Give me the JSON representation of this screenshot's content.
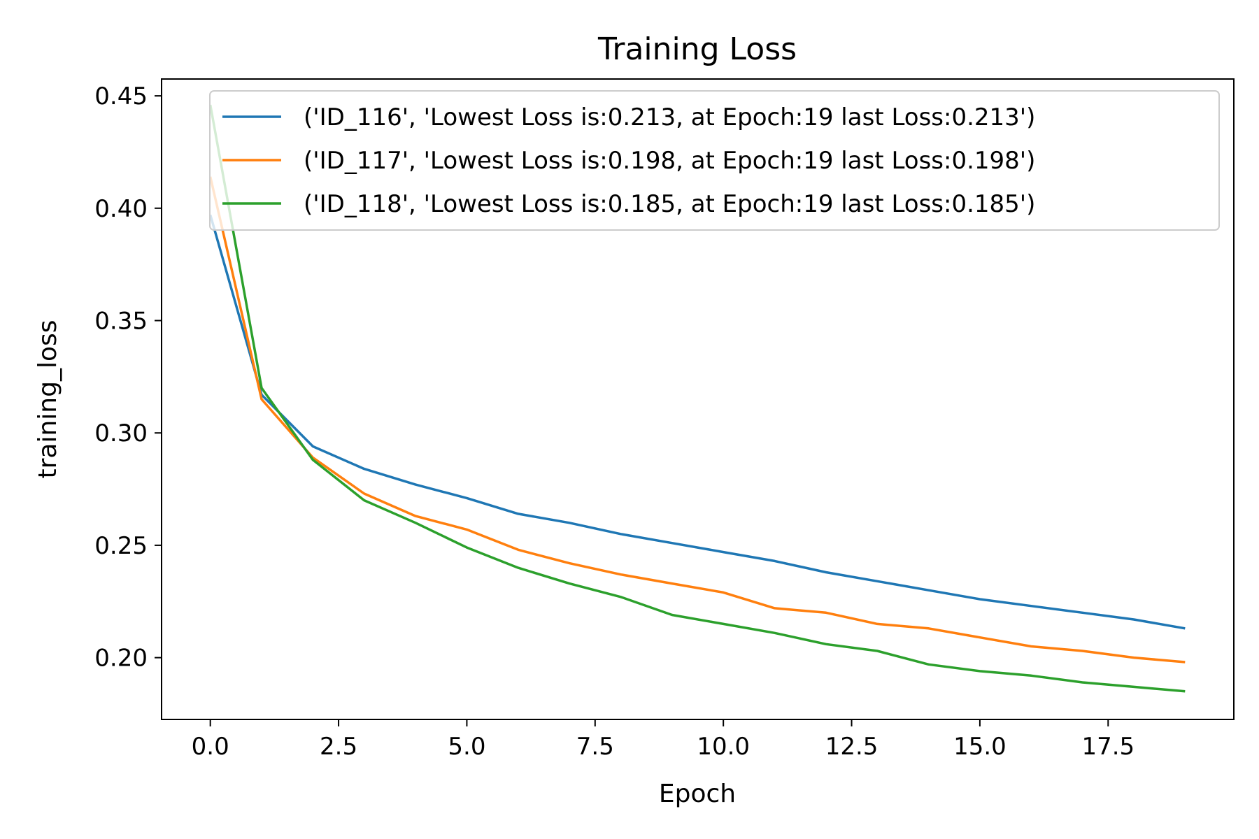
{
  "chart_data": {
    "type": "line",
    "title": "Training Loss",
    "xlabel": "Epoch",
    "ylabel": "training_loss",
    "xlim": [
      -0.95,
      19.95
    ],
    "ylim": [
      0.1725,
      0.4575
    ],
    "xticks": [
      0,
      2.5,
      5,
      7.5,
      10,
      12.5,
      15,
      17.5
    ],
    "xtick_labels": [
      "0.0",
      "2.5",
      "5.0",
      "7.5",
      "10.0",
      "12.5",
      "15.0",
      "17.5"
    ],
    "yticks": [
      0.2,
      0.25,
      0.3,
      0.35,
      0.4,
      0.45
    ],
    "ytick_labels": [
      "0.20",
      "0.25",
      "0.30",
      "0.35",
      "0.40",
      "0.45"
    ],
    "grid": false,
    "legend_position": "top-right",
    "x": [
      0,
      1,
      2,
      3,
      4,
      5,
      6,
      7,
      8,
      9,
      10,
      11,
      12,
      13,
      14,
      15,
      16,
      17,
      18,
      19
    ],
    "series": [
      {
        "name": "('ID_116', 'Lowest Loss is:0.213, at Epoch:19 last Loss:0.213')",
        "color": "#1f77b4",
        "values": [
          0.397,
          0.317,
          0.294,
          0.284,
          0.277,
          0.271,
          0.264,
          0.26,
          0.255,
          0.251,
          0.247,
          0.243,
          0.238,
          0.234,
          0.23,
          0.226,
          0.223,
          0.22,
          0.217,
          0.213
        ]
      },
      {
        "name": "('ID_117', 'Lowest Loss is:0.198, at Epoch:19 last Loss:0.198')",
        "color": "#ff7f0e",
        "values": [
          0.414,
          0.315,
          0.289,
          0.273,
          0.263,
          0.257,
          0.248,
          0.242,
          0.237,
          0.233,
          0.229,
          0.222,
          0.22,
          0.215,
          0.213,
          0.209,
          0.205,
          0.203,
          0.2,
          0.198
        ]
      },
      {
        "name": "('ID_118', 'Lowest Loss is:0.185, at Epoch:19 last Loss:0.185')",
        "color": "#2ca02c",
        "values": [
          0.446,
          0.32,
          0.288,
          0.27,
          0.26,
          0.249,
          0.24,
          0.233,
          0.227,
          0.219,
          0.215,
          0.211,
          0.206,
          0.203,
          0.197,
          0.194,
          0.192,
          0.189,
          0.187,
          0.185
        ]
      }
    ]
  }
}
